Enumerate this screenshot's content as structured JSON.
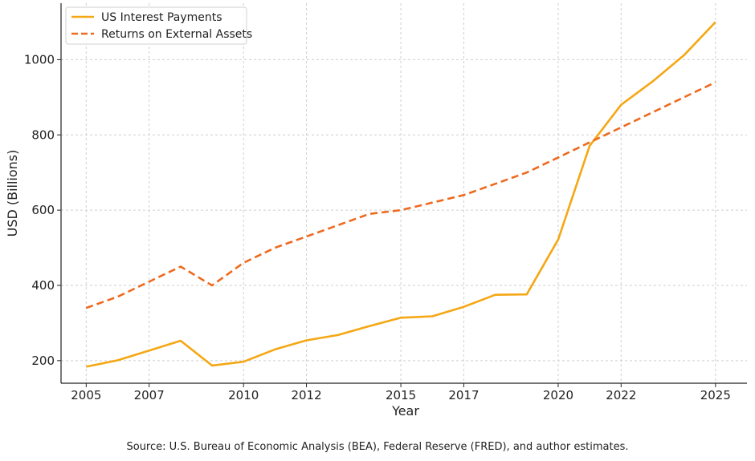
{
  "chart_data": {
    "type": "line",
    "title": "",
    "xlabel": "Year",
    "ylabel": "USD (Billions)",
    "xlim": [
      2004.2,
      2026
    ],
    "ylim": [
      140,
      1150
    ],
    "x_ticks": [
      2005,
      2007,
      2010,
      2012,
      2015,
      2017,
      2020,
      2022,
      2025
    ],
    "y_ticks": [
      200,
      400,
      600,
      800,
      1000
    ],
    "grid": true,
    "legend_position": "top-left",
    "series": [
      {
        "name": "US Interest Payments",
        "color": "#F5A714",
        "style": "solid",
        "x": [
          2005,
          2006,
          2007,
          2008,
          2009,
          2010,
          2011,
          2012,
          2013,
          2014,
          2015,
          2016,
          2017,
          2018,
          2019,
          2020,
          2021,
          2022,
          2023,
          2024,
          2025
        ],
        "y": [
          184,
          201,
          227,
          253,
          187,
          197,
          230,
          254,
          268,
          292,
          314,
          318,
          343,
          375,
          376,
          522,
          771,
          880,
          942,
          1012,
          1100
        ]
      },
      {
        "name": "Returns on External Assets",
        "color": "#EE6A1F",
        "style": "dashed",
        "x": [
          2005,
          2006,
          2007,
          2008,
          2009,
          2010,
          2011,
          2012,
          2013,
          2014,
          2015,
          2016,
          2017,
          2018,
          2019,
          2020,
          2021,
          2022,
          2023,
          2024,
          2025
        ],
        "y": [
          340,
          370,
          410,
          450,
          400,
          460,
          500,
          530,
          560,
          590,
          600,
          620,
          640,
          670,
          700,
          740,
          780,
          820,
          860,
          900,
          940
        ]
      }
    ]
  },
  "source_note": "Source: U.S. Bureau of Economic Analysis (BEA), Federal Reserve (FRED), and author estimates."
}
